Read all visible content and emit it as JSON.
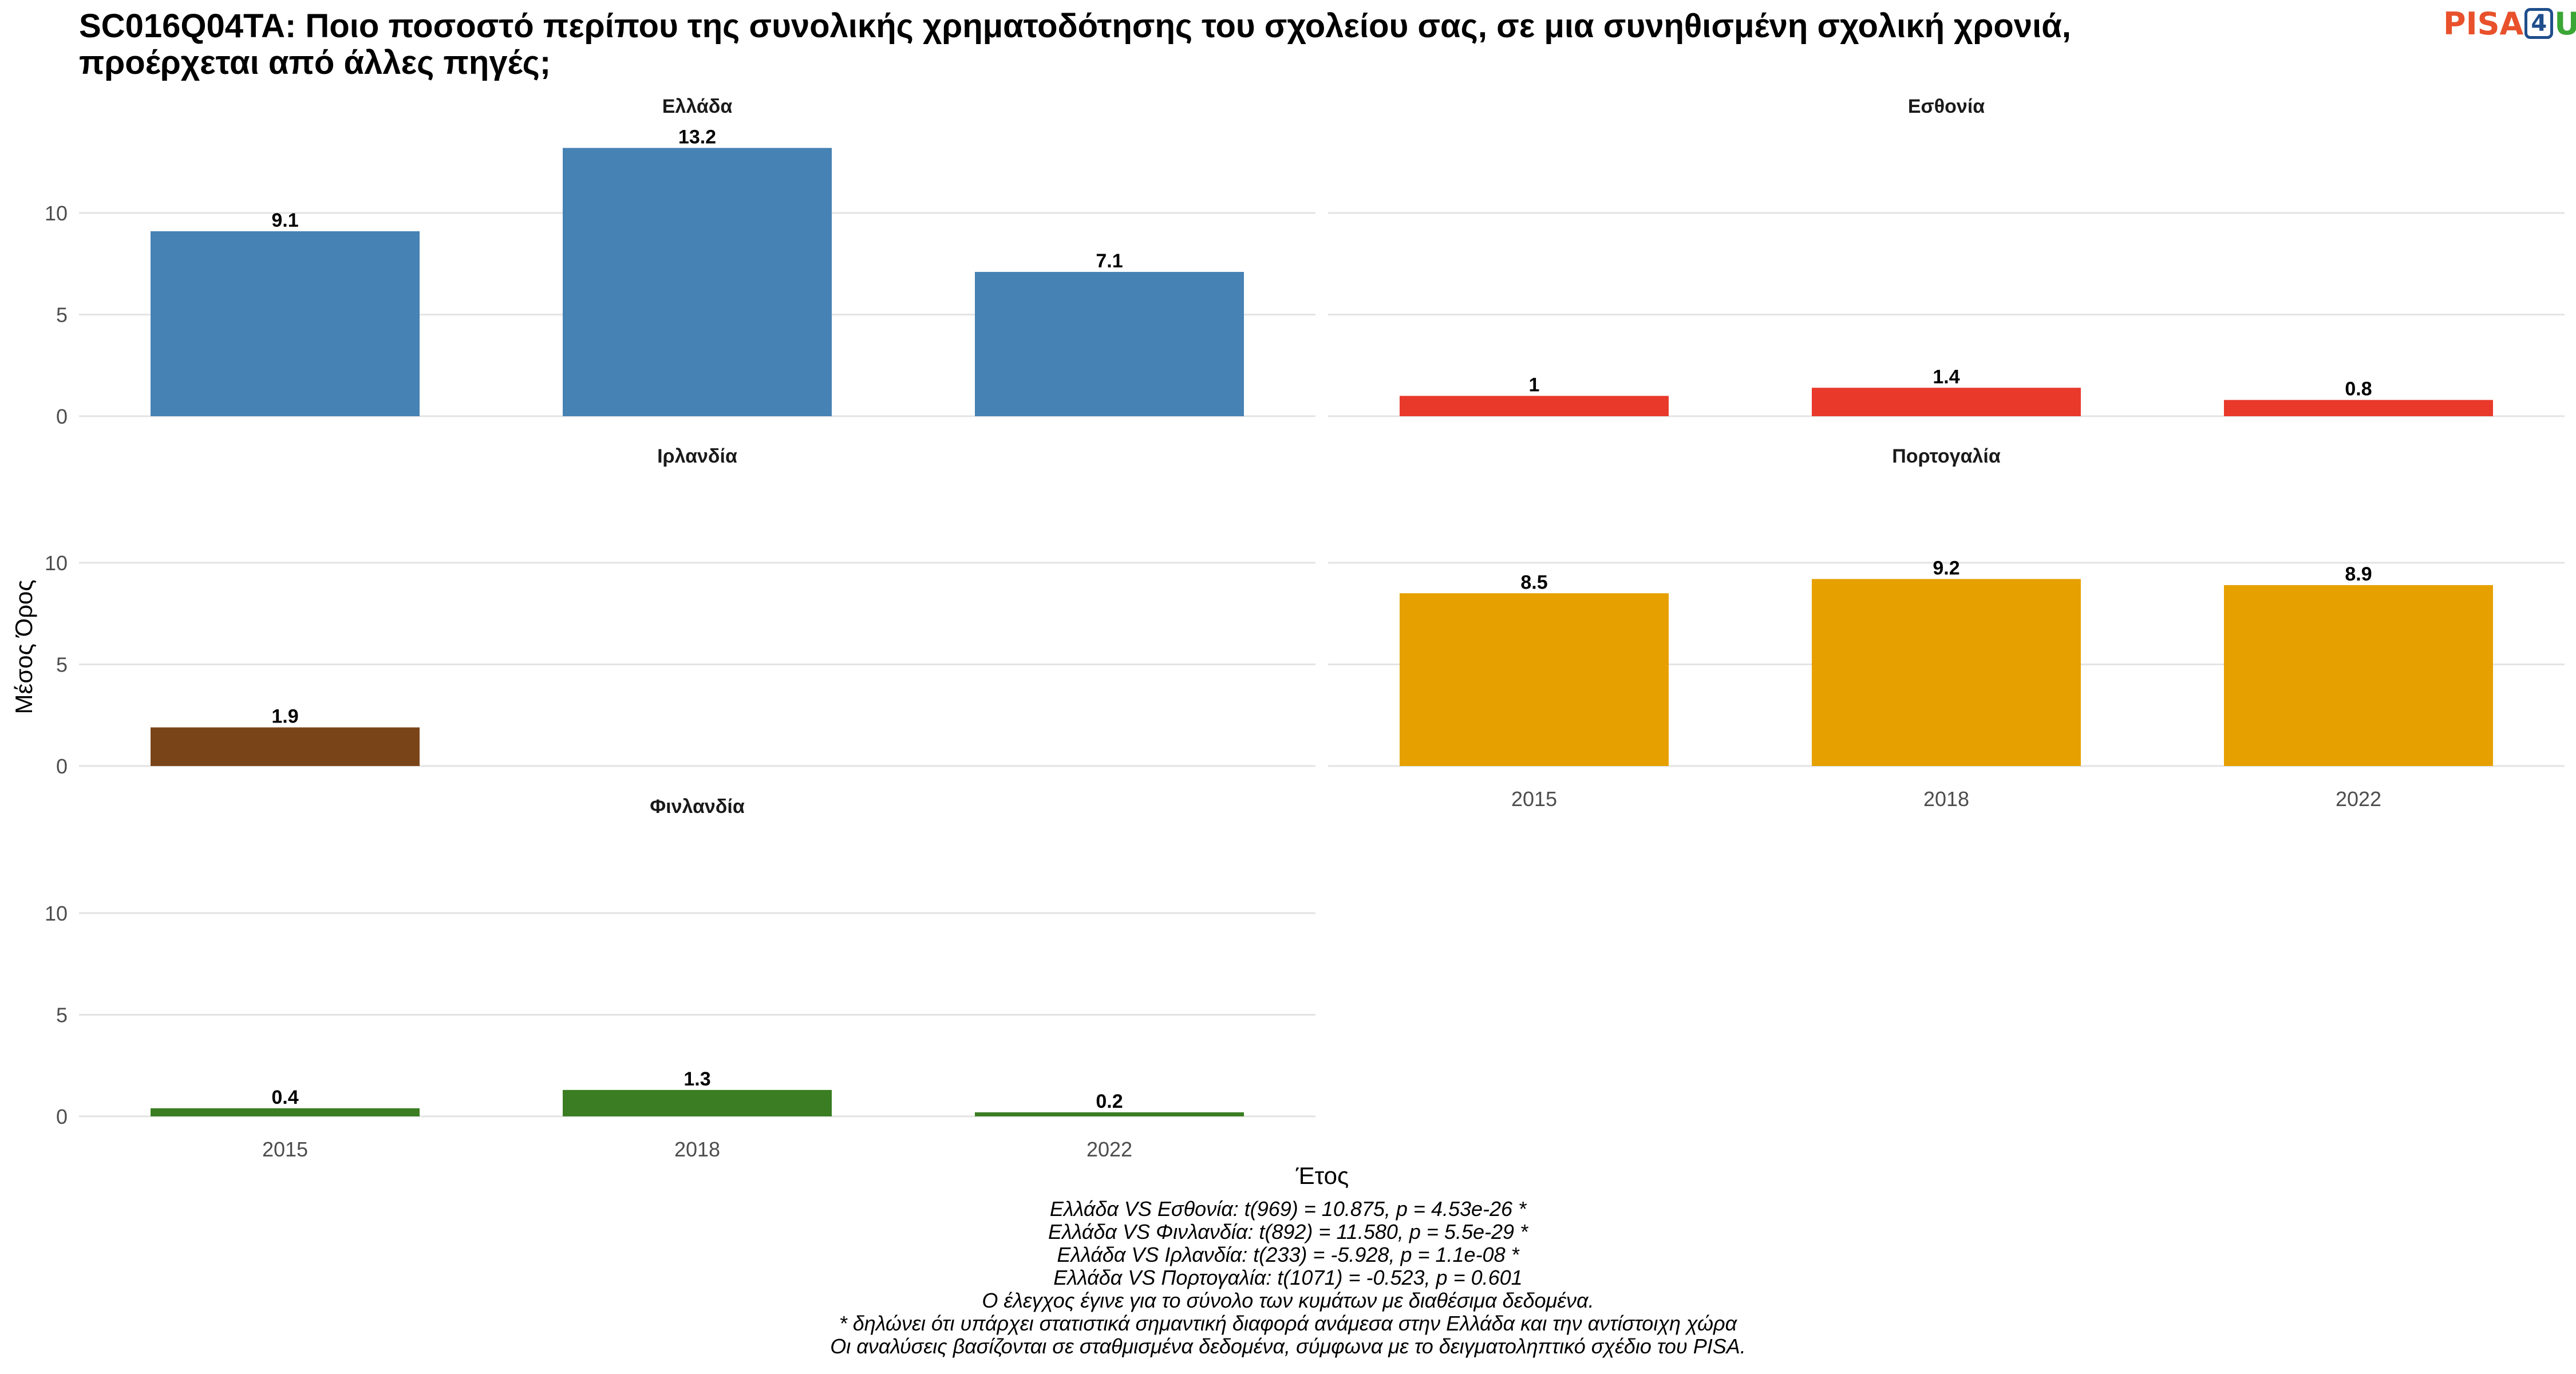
{
  "title": "SC016Q04TA: Ποιο ποσοστό περίπου της συνολικής χρηματοδότησης του σχολείου σας, σε μια συνηθισμένη σχολική χρονιά, προέρχεται από άλλες πηγές;",
  "logo": {
    "text_pisa": "PISA",
    "text_4": "4",
    "text_u": "U"
  },
  "chart_data": {
    "type": "bar",
    "facet": true,
    "xlabel": "Έτος",
    "ylabel": "Μέσος Όρος",
    "categories": [
      "2015",
      "2018",
      "2022"
    ],
    "ylim": [
      0,
      13.2
    ],
    "yticks": [
      0,
      5,
      10
    ],
    "grid": true,
    "series": [
      {
        "name": "Ελλάδα",
        "color": "#4682b4",
        "values": [
          9.1,
          13.2,
          7.1
        ],
        "labels": [
          "9.1",
          "13.2",
          "7.1"
        ]
      },
      {
        "name": "Εσθονία",
        "color": "#e8392a",
        "values": [
          1,
          1.4,
          0.8
        ],
        "labels": [
          "1",
          "1.4",
          "0.8"
        ]
      },
      {
        "name": "Ιρλανδία",
        "color": "#7a4419",
        "values": [
          1.9,
          null,
          null
        ],
        "labels": [
          "1.9",
          "",
          ""
        ]
      },
      {
        "name": "Πορτογαλία",
        "color": "#e6a000",
        "values": [
          8.5,
          9.2,
          8.9
        ],
        "labels": [
          "8.5",
          "9.2",
          "8.9"
        ]
      },
      {
        "name": "Φινλανδία",
        "color": "#3a7d22",
        "values": [
          0.4,
          1.3,
          0.2
        ],
        "labels": [
          "0.4",
          "1.3",
          "0.2"
        ]
      }
    ]
  },
  "footnotes": [
    "Ελλάδα VS Εσθονία: t(969) = 10.875, p = 4.53e-26 *",
    "Ελλάδα VS Φινλανδία: t(892) = 11.580, p = 5.5e-29 *",
    "Ελλάδα VS Ιρλανδία: t(233) = -5.928, p = 1.1e-08 *",
    "Ελλάδα VS Πορτογαλία: t(1071) = -0.523, p = 0.601",
    "Ο έλεγχος έγινε για το σύνολο των κυμάτων με διαθέσιμα δεδομένα.",
    "* δηλώνει ότι υπάρχει στατιστικά σημαντική διαφορά ανάμεσα στην Ελλάδα και την αντίστοιχη χώρα",
    "Οι αναλύσεις βασίζονται σε σταθμισμένα δεδομένα, σύμφωνα με το δειγματοληπτικό σχέδιο του PISA."
  ]
}
